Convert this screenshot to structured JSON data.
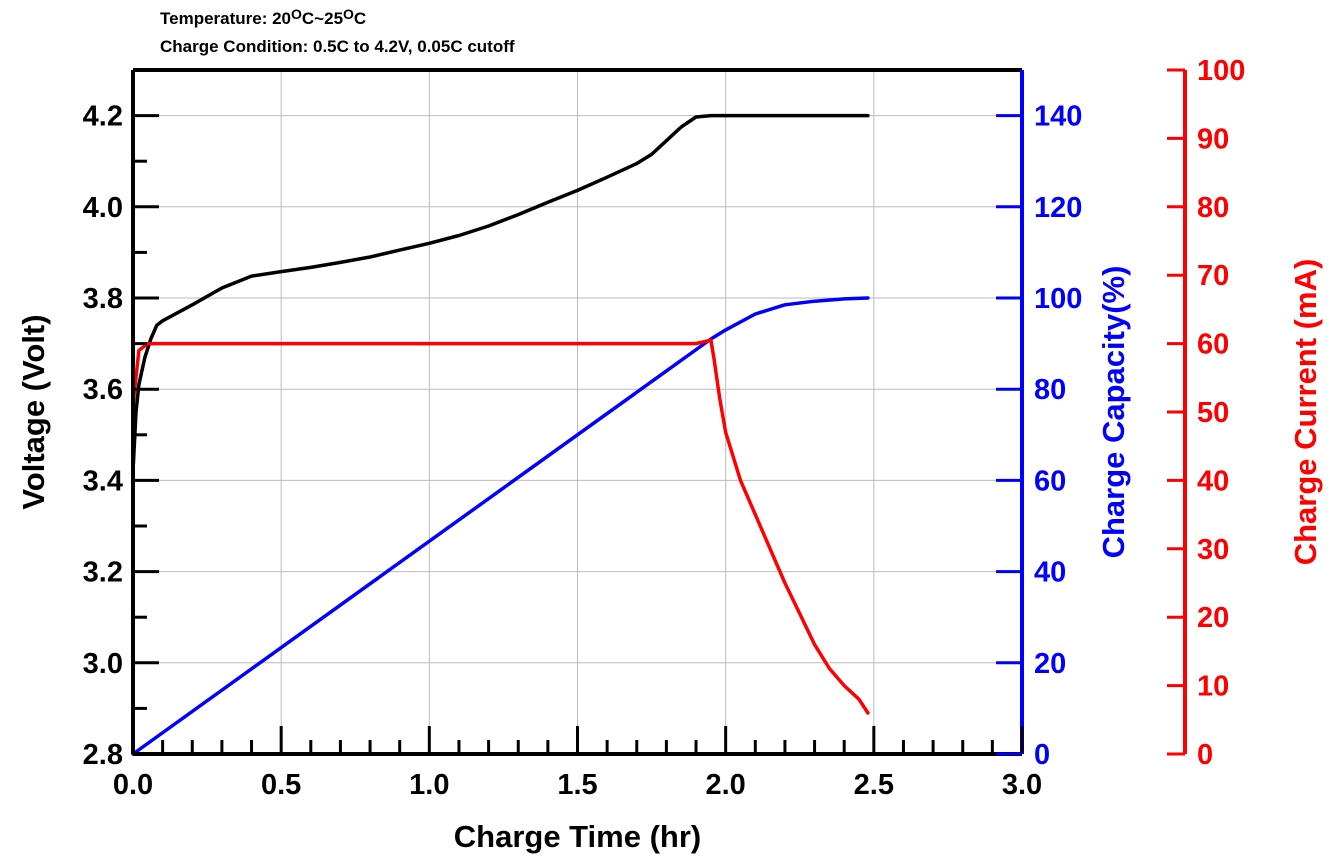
{
  "header": {
    "temperature_prefix": "Temperature: 20",
    "temperature_o1": "O",
    "temperature_mid": "C~25",
    "temperature_o2": "O",
    "temperature_suffix": "C",
    "charge_condition": "Charge Condition: 0.5C to 4.2V, 0.05C cutoff"
  },
  "colors": {
    "voltage": "#000000",
    "capacity": "#0000ff",
    "current": "#ff0000",
    "grid": "#bbbbbb"
  },
  "chart_data": {
    "type": "line",
    "grid": true,
    "xlabel": "Charge Time (hr)",
    "xlim": [
      0,
      3.0
    ],
    "xticks": [
      "0.0",
      "0.5",
      "1.0",
      "1.5",
      "2.0",
      "2.5",
      "3.0"
    ],
    "y_left": {
      "label": "Voltage (Volt)",
      "lim": [
        2.8,
        4.3
      ],
      "ticks": [
        "2.8",
        "3.0",
        "3.2",
        "3.4",
        "3.6",
        "3.8",
        "4.0",
        "4.2"
      ]
    },
    "y_right1": {
      "label": "Charge Capacity(%)",
      "lim": [
        0,
        150
      ],
      "ticks": [
        "0",
        "20",
        "40",
        "60",
        "80",
        "100",
        "120",
        "140"
      ]
    },
    "y_right2": {
      "label": "Charge Current (mA)",
      "lim": [
        0,
        100
      ],
      "ticks": [
        "0",
        "10",
        "20",
        "30",
        "40",
        "50",
        "60",
        "70",
        "80",
        "90",
        "100"
      ]
    },
    "series": [
      {
        "axis": "left",
        "x": [
          0.0,
          0.01,
          0.02,
          0.04,
          0.06,
          0.08,
          0.1,
          0.2,
          0.3,
          0.4,
          0.5,
          0.6,
          0.7,
          0.8,
          0.9,
          1.0,
          1.1,
          1.2,
          1.3,
          1.4,
          1.5,
          1.6,
          1.7,
          1.75,
          1.8,
          1.85,
          1.9,
          1.95,
          2.0,
          2.1,
          2.2,
          2.3,
          2.4,
          2.48
        ],
        "y": [
          3.42,
          3.55,
          3.61,
          3.67,
          3.71,
          3.74,
          3.75,
          3.785,
          3.822,
          3.848,
          3.858,
          3.867,
          3.878,
          3.89,
          3.905,
          3.92,
          3.937,
          3.958,
          3.983,
          4.01,
          4.036,
          4.065,
          4.095,
          4.115,
          4.145,
          4.175,
          4.197,
          4.2,
          4.2,
          4.2,
          4.2,
          4.2,
          4.2,
          4.2
        ]
      },
      {
        "axis": "right1",
        "x": [
          0.0,
          1.95,
          2.0,
          2.1,
          2.2,
          2.3,
          2.4,
          2.48
        ],
        "y": [
          0,
          91,
          93,
          96.5,
          98.5,
          99.3,
          99.8,
          100
        ]
      },
      {
        "axis": "right2",
        "x": [
          0.0,
          0.02,
          0.05,
          0.5,
          1.0,
          1.5,
          1.9,
          1.95,
          1.96,
          1.98,
          2.0,
          2.05,
          2.1,
          2.15,
          2.2,
          2.25,
          2.3,
          2.35,
          2.4,
          2.45,
          2.48
        ],
        "y": [
          51,
          59,
          60,
          60,
          60,
          60,
          60,
          60.5,
          58,
          52,
          47,
          40,
          35,
          30,
          25,
          20.5,
          16,
          12.5,
          10,
          8,
          6
        ]
      }
    ]
  }
}
